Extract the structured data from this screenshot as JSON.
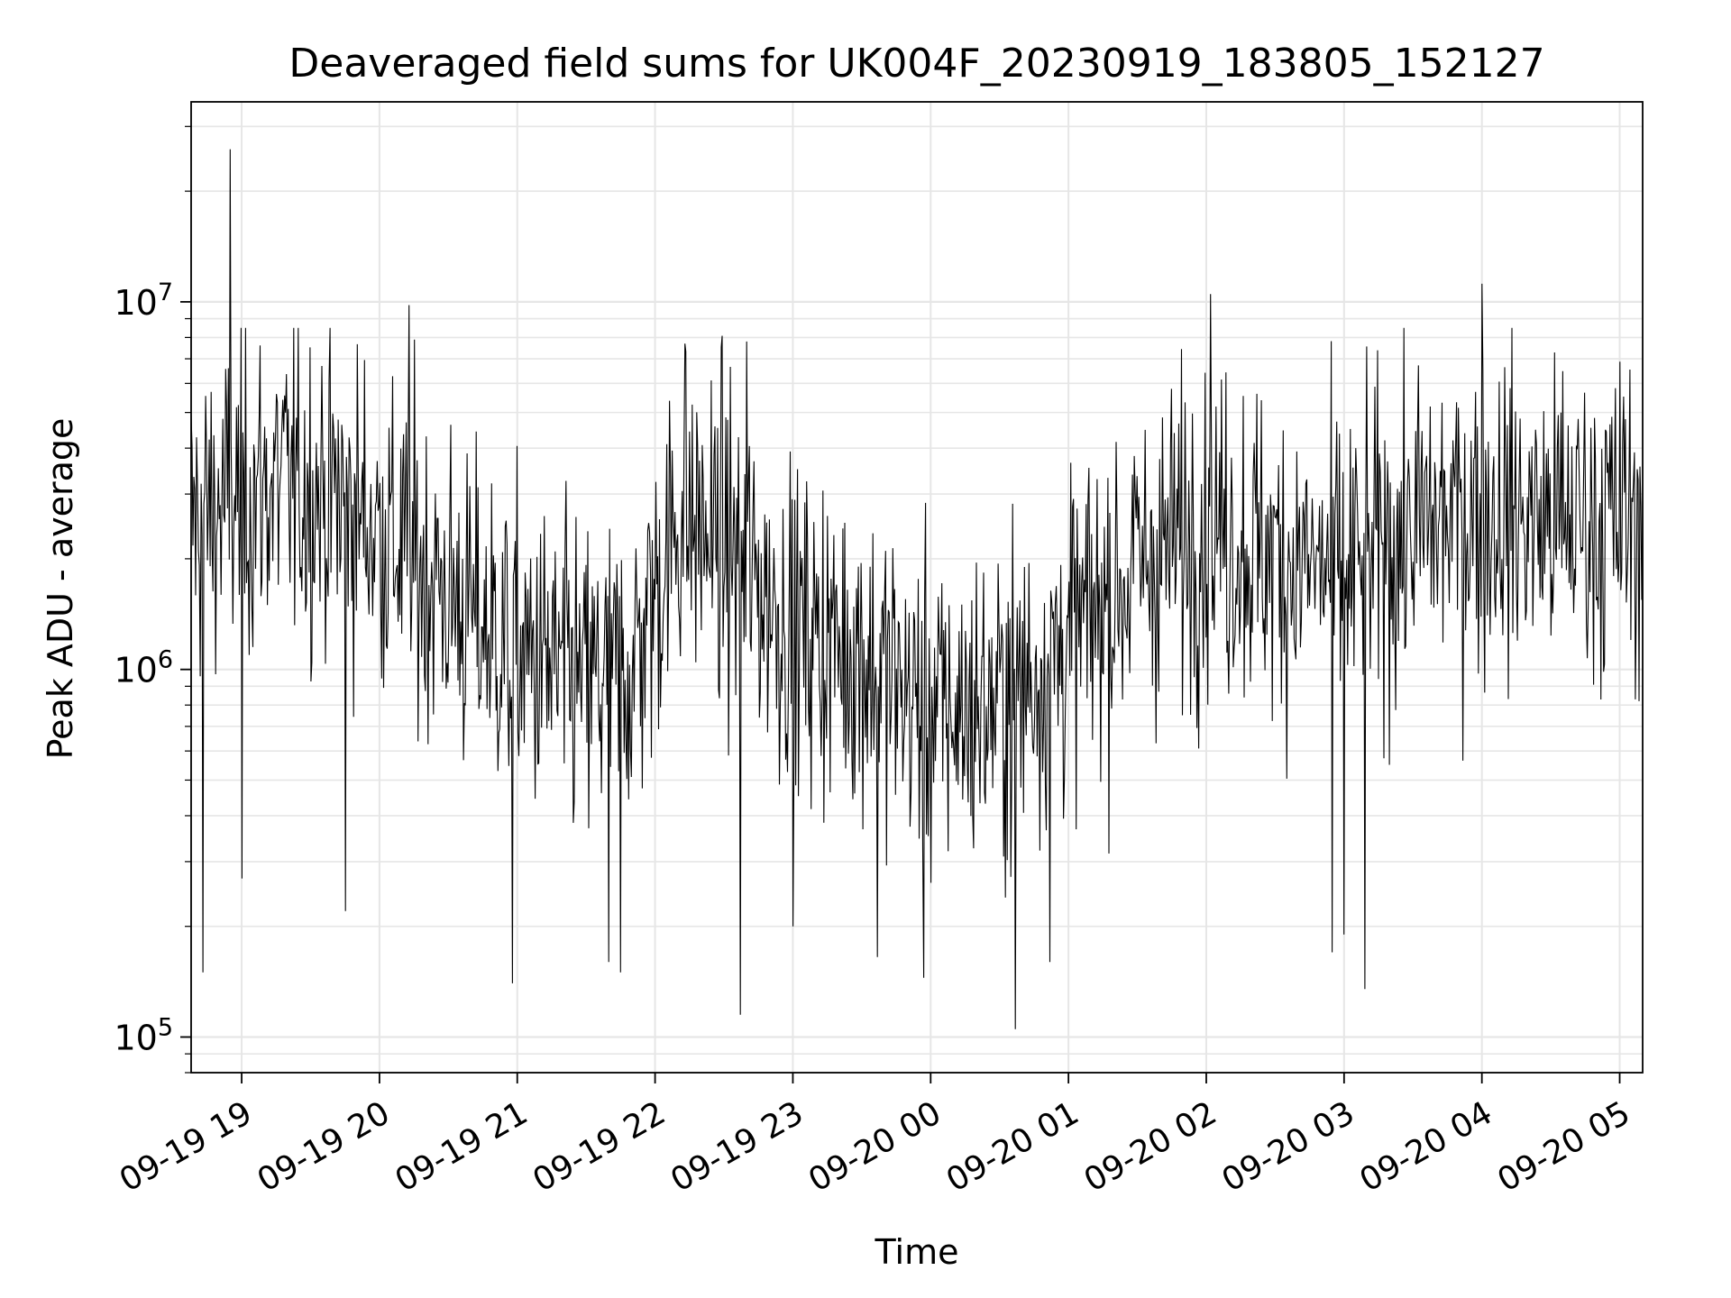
{
  "chart_data": {
    "type": "line",
    "title": "Deaveraged field sums for UK004F_20230919_183805_152127",
    "xlabel": "Time",
    "ylabel": "Peak ADU - average",
    "y_scale": "log",
    "ylim": [
      80000,
      35000000
    ],
    "xlim": [
      "2023-09-19 18:38",
      "2023-09-20 05:10"
    ],
    "grid": true,
    "line_color": "#000000",
    "grid_color": "#e6e6e6",
    "x_ticks": [
      {
        "t": "2023-09-19 19:00",
        "label": "09-19 19"
      },
      {
        "t": "2023-09-19 20:00",
        "label": "09-19 20"
      },
      {
        "t": "2023-09-19 21:00",
        "label": "09-19 21"
      },
      {
        "t": "2023-09-19 22:00",
        "label": "09-19 22"
      },
      {
        "t": "2023-09-19 23:00",
        "label": "09-19 23"
      },
      {
        "t": "2023-09-20 00:00",
        "label": "09-20 00"
      },
      {
        "t": "2023-09-20 01:00",
        "label": "09-20 01"
      },
      {
        "t": "2023-09-20 02:00",
        "label": "09-20 02"
      },
      {
        "t": "2023-09-20 03:00",
        "label": "09-20 03"
      },
      {
        "t": "2023-09-20 04:00",
        "label": "09-20 04"
      },
      {
        "t": "2023-09-20 05:00",
        "label": "09-20 05"
      }
    ],
    "y_ticks": [
      {
        "value": 100000,
        "base": "10",
        "exp": "5"
      },
      {
        "value": 1000000,
        "base": "10",
        "exp": "6"
      },
      {
        "value": 10000000,
        "base": "10",
        "exp": "7"
      }
    ],
    "series": [
      {
        "name": "",
        "trend": [
          [
            "2023-09-19 18:38",
            2500000
          ],
          [
            "2023-09-19 19:15",
            3200000
          ],
          [
            "2023-09-19 19:40",
            3000000
          ],
          [
            "2023-09-19 20:00",
            2400000
          ],
          [
            "2023-09-19 20:30",
            1600000
          ],
          [
            "2023-09-19 21:00",
            1100000
          ],
          [
            "2023-09-19 21:30",
            900000
          ],
          [
            "2023-09-19 21:50",
            1000000
          ],
          [
            "2023-09-19 22:10",
            2600000
          ],
          [
            "2023-09-19 22:30",
            2200000
          ],
          [
            "2023-09-19 23:00",
            1300000
          ],
          [
            "2023-09-19 23:30",
            1100000
          ],
          [
            "2023-09-20 00:00",
            750000
          ],
          [
            "2023-09-20 00:30",
            800000
          ],
          [
            "2023-09-20 01:00",
            1200000
          ],
          [
            "2023-09-20 01:30",
            1900000
          ],
          [
            "2023-09-20 02:00",
            2500000
          ],
          [
            "2023-09-20 02:30",
            2000000
          ],
          [
            "2023-09-20 03:00",
            1800000
          ],
          [
            "2023-09-20 03:30",
            2400000
          ],
          [
            "2023-09-20 04:00",
            2700000
          ],
          [
            "2023-09-20 04:30",
            2500000
          ],
          [
            "2023-09-20 05:10",
            2600000
          ]
        ],
        "spikes": [
          [
            "2023-09-19 18:43",
            150000
          ],
          [
            "2023-09-19 18:55",
            26000000
          ],
          [
            "2023-09-19 19:00",
            270000
          ],
          [
            "2023-09-19 19:45",
            220000
          ],
          [
            "2023-09-19 20:13",
            9800000
          ],
          [
            "2023-09-19 20:58",
            140000
          ],
          [
            "2023-09-19 21:40",
            160000
          ],
          [
            "2023-09-19 21:45",
            150000
          ],
          [
            "2023-09-19 22:13",
            7700000
          ],
          [
            "2023-09-19 22:37",
            115000
          ],
          [
            "2023-09-19 22:40",
            7800000
          ],
          [
            "2023-09-19 23:00",
            200000
          ],
          [
            "2023-09-19 23:37",
            165000
          ],
          [
            "2023-09-19 23:57",
            145000
          ],
          [
            "2023-09-20 00:37",
            105000
          ],
          [
            "2023-09-20 00:52",
            160000
          ],
          [
            "2023-09-20 02:02",
            10500000
          ],
          [
            "2023-09-20 02:55",
            170000
          ],
          [
            "2023-09-20 03:00",
            190000
          ],
          [
            "2023-09-20 03:09",
            135000
          ],
          [
            "2023-09-20 04:00",
            11200000
          ]
        ]
      }
    ]
  }
}
